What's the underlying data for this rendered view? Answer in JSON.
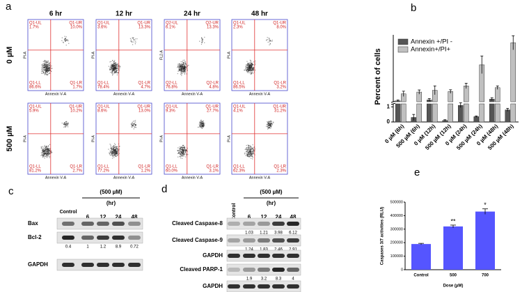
{
  "panel_labels": [
    "a",
    "b",
    "c",
    "d",
    "e"
  ],
  "flow": {
    "columns": [
      "6 hr",
      "12 hr",
      "24 hr",
      "48 hr"
    ],
    "rows": [
      "0 µM",
      "500 µM"
    ],
    "x_label": "Annexin V-A",
    "plots": [
      [
        {
          "y_label": "PI-A",
          "quadrants": [
            [
              "Q1-UL",
              "1.7%"
            ],
            [
              "Q1-UR",
              "10.0%"
            ],
            [
              "Q1-LL",
              "86.6%"
            ],
            [
              "Q1-LR",
              "1.7%"
            ]
          ]
        },
        {
          "y_label": "PI-A",
          "quadrants": [
            [
              "Q1-UL",
              "3.6%"
            ],
            [
              "Q1-UR",
              "13.3%"
            ],
            [
              "Q1-LL",
              "78.4%"
            ],
            [
              "Q1-LR",
              "4.7%"
            ]
          ]
        },
        {
          "y_label": "FL2-A",
          "quadrants": [
            [
              "Q2-UL",
              "6.1%"
            ],
            [
              "Q2-UR",
              "13.3%"
            ],
            [
              "Q2-LL",
              "76.8%"
            ],
            [
              "Q2-LR",
              "4.8%"
            ]
          ]
        },
        {
          "y_label": "PI-A",
          "quadrants": [
            [
              "Q1-UL",
              "2.3%"
            ],
            [
              "Q1-UR",
              "8.0%"
            ],
            [
              "Q1-LL",
              "86.5%"
            ],
            [
              "Q1-LR",
              "3.2%"
            ]
          ]
        }
      ],
      [
        {
          "y_label": "PI-A",
          "quadrants": [
            [
              "Q1-UL",
              "5.9%"
            ],
            [
              "Q1-UR",
              "10.2%"
            ],
            [
              "Q1-LL",
              "81.2%"
            ],
            [
              "Q1-LR",
              "2.7%"
            ]
          ]
        },
        {
          "y_label": "PI-A",
          "quadrants": [
            [
              "Q1-UL",
              "8.6%"
            ],
            [
              "Q1-UR",
              "13.0%"
            ],
            [
              "Q1-LL",
              "77.2%"
            ],
            [
              "Q1-LR",
              "1.2%"
            ]
          ]
        },
        {
          "y_label": "PI-A",
          "quadrants": [
            [
              "Q1-UL",
              "9.3%"
            ],
            [
              "Q1-UR",
              "27.7%"
            ],
            [
              "Q1-LL",
              "60.0%"
            ],
            [
              "Q1-LR",
              "3.1%"
            ]
          ]
        },
        {
          "y_label": "PI-A",
          "quadrants": [
            [
              "Q1-UL",
              "4.1%"
            ],
            [
              "Q1-UR",
              "31.2%"
            ],
            [
              "Q1-LL",
              "62.3%"
            ],
            [
              "Q1-LR",
              "2.3%"
            ]
          ]
        }
      ]
    ]
  },
  "chart_data": [
    {
      "type": "bar",
      "y_label": "Percent of cells",
      "categories": [
        "0 µM (6h)",
        "500 µM (6h)",
        "0 µM (12h)",
        "500 µM (12h)",
        "0 µM (24h)",
        "500 µM (24h)",
        "0 µM (48h)",
        "500 µM (48h)"
      ],
      "series": [
        {
          "name": "Annexin +/PI -",
          "color": "#555555",
          "values": [
            2.5,
            0.3,
            3.0,
            0.1,
            1.1,
            0.35,
            3.5,
            0.8
          ],
          "errors": [
            0.5,
            0.2,
            0.8,
            0.05,
            0.15,
            0.05,
            0.8,
            0.1
          ]
        },
        {
          "name": "Annexin+/PI+",
          "color": "#c0c0c0",
          "values": [
            6.5,
            7.5,
            8.5,
            7.8,
            11,
            23,
            10,
            35.5
          ],
          "errors": [
            1.5,
            1.2,
            2.5,
            1,
            1.5,
            5,
            1,
            4
          ]
        }
      ],
      "ylim_lower": [
        0,
        1.2
      ],
      "ylim_upper": [
        2,
        40
      ],
      "yticks": [
        0,
        1
      ],
      "legend": "upper-left"
    },
    {
      "type": "bar",
      "y_label": "Caspases 3/7 activities (RLU)",
      "x_label": "Dose (µM)",
      "categories": [
        "Control",
        "500",
        "700"
      ],
      "values": [
        190000,
        320000,
        430000
      ],
      "errors": [
        5000,
        10000,
        20000
      ],
      "significance": [
        null,
        "**",
        "*"
      ],
      "color": "#5555ff",
      "ylim": [
        0,
        500000
      ],
      "yticks": [
        0,
        100000,
        200000,
        300000,
        400000,
        500000
      ]
    }
  ],
  "blot_c": {
    "header": "(500 µM)",
    "unit": "(hr)",
    "lanes": [
      "Control",
      "6",
      "12",
      "24",
      "48"
    ],
    "rows": [
      {
        "label": "Bax"
      },
      {
        "label": "Bcl-2",
        "quant": [
          "0.4",
          "1",
          "1.2",
          "8.9",
          "0.72"
        ]
      },
      {
        "label": "GAPDH"
      }
    ]
  },
  "blot_d": {
    "header": "(500 µM)",
    "unit": "(hr)",
    "lanes": [
      "Control",
      "6",
      "12",
      "24",
      "48"
    ],
    "rows": [
      {
        "label": "Cleaved Caspase-8",
        "quant": [
          "1.03",
          "1.21",
          "3.98",
          "6.12"
        ]
      },
      {
        "label": "Cleaved Caspase-9",
        "quant": [
          "1.24",
          "1.83",
          "2.46",
          "2.91"
        ]
      },
      {
        "label": "GAPDH"
      },
      {
        "label": "Cleaved PARP-1",
        "quant": [
          "1.9",
          "3.2",
          "8.3",
          "4"
        ]
      },
      {
        "label": "GAPDH"
      }
    ]
  }
}
